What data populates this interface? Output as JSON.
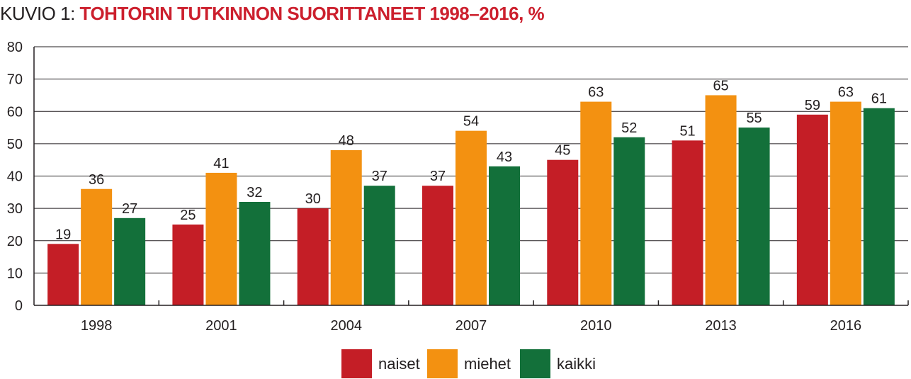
{
  "title": {
    "prefix": "KUVIO 1: ",
    "main": "TOHTORIN TUTKINNON SUORITTANEET 1998–2016",
    "suffix": ", %"
  },
  "chart_data": {
    "type": "bar",
    "title": "TOHTORIN TUTKINNON SUORITTANEET 1998–2016, %",
    "categories": [
      "1998",
      "2001",
      "2004",
      "2007",
      "2010",
      "2013",
      "2016"
    ],
    "series": [
      {
        "name": "naiset",
        "color": "#c41e26",
        "values": [
          19,
          25,
          30,
          37,
          45,
          51,
          59
        ]
      },
      {
        "name": "miehet",
        "color": "#f39111",
        "values": [
          36,
          41,
          48,
          54,
          63,
          65,
          63
        ]
      },
      {
        "name": "kaikki",
        "color": "#13703a",
        "values": [
          27,
          32,
          37,
          43,
          52,
          55,
          61
        ]
      }
    ],
    "ylim": [
      0,
      80
    ],
    "yticks": [
      0,
      10,
      20,
      30,
      40,
      50,
      60,
      70,
      80
    ],
    "grid": true,
    "legend": "bottom-center"
  }
}
